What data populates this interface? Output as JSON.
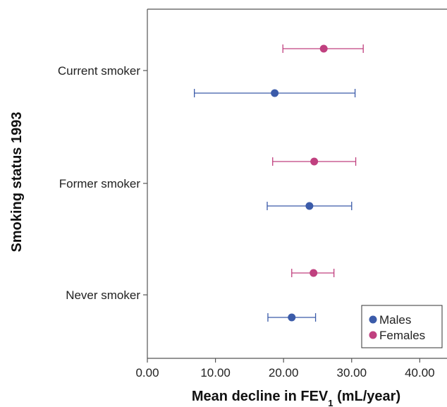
{
  "chart_data": {
    "type": "scatter",
    "orientation": "horizontal",
    "xlabel_main": "Mean decline in FEV",
    "xlabel_sub": "1",
    "xlabel_tail": " (mL/year)",
    "ylabel": "Smoking status 1993",
    "xlim": [
      0,
      44
    ],
    "x_ticks": [
      0,
      10,
      20,
      30,
      40
    ],
    "x_tick_labels": [
      "0.00",
      "10.00",
      "20.00",
      "30.00",
      "40.00"
    ],
    "categories": [
      "Current smoker",
      "Former smoker",
      "Never smoker"
    ],
    "series": [
      {
        "name": "Males",
        "color": "#3b5ba9",
        "points": [
          {
            "category": "Current smoker",
            "mean": 18.7,
            "lower": 6.9,
            "upper": 30.5
          },
          {
            "category": "Former smoker",
            "mean": 23.8,
            "lower": 17.6,
            "upper": 30.0
          },
          {
            "category": "Never smoker",
            "mean": 21.2,
            "lower": 17.7,
            "upper": 24.7
          }
        ]
      },
      {
        "name": "Females",
        "color": "#c0407f",
        "points": [
          {
            "category": "Current smoker",
            "mean": 25.9,
            "lower": 19.9,
            "upper": 31.7
          },
          {
            "category": "Former smoker",
            "mean": 24.5,
            "lower": 18.4,
            "upper": 30.6
          },
          {
            "category": "Never smoker",
            "mean": 24.4,
            "lower": 21.2,
            "upper": 27.4
          }
        ]
      }
    ],
    "legend": {
      "placement": "bottom-right",
      "entries": [
        "Males",
        "Females"
      ]
    },
    "grid": false
  }
}
